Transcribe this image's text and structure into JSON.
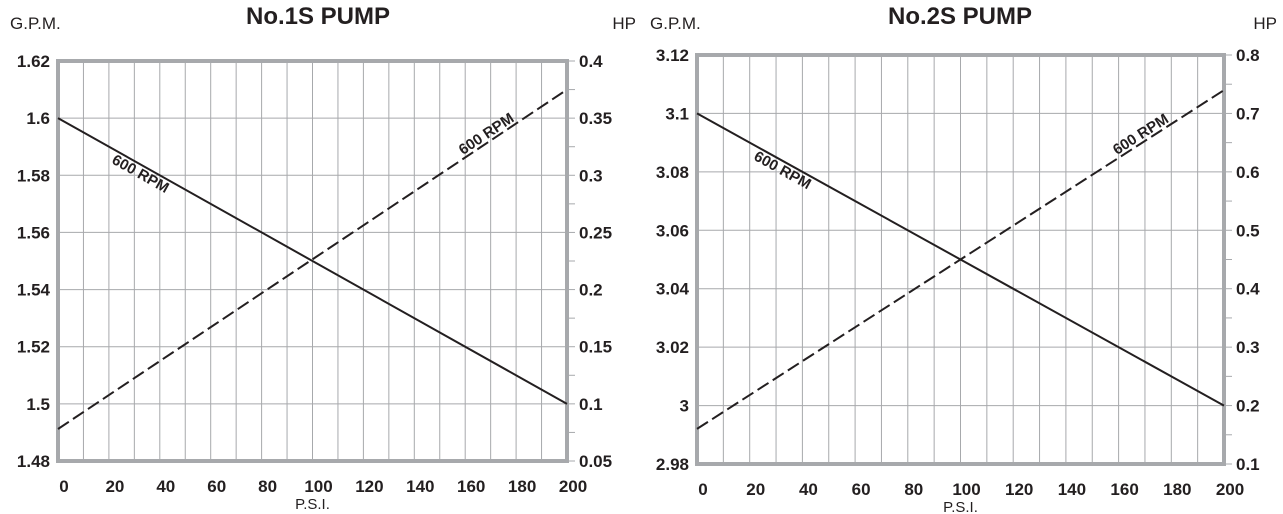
{
  "chart_data": [
    {
      "type": "line",
      "title": "No.1S PUMP",
      "ylabel_left": "G.P.M.",
      "ylabel_right": "HP",
      "xlabel": "P.S.I.",
      "x_ticks": [
        "0",
        "20",
        "40",
        "60",
        "80",
        "100",
        "120",
        "140",
        "160",
        "180",
        "200"
      ],
      "y_left_ticks": [
        "1.48",
        "1.5",
        "1.52",
        "1.54",
        "1.56",
        "1.58",
        "1.6",
        "1.62"
      ],
      "y_right_ticks": [
        "0.05",
        "0.1",
        "0.15",
        "0.2",
        "0.25",
        "0.3",
        "0.35",
        "0.4"
      ],
      "xlim": [
        0,
        200
      ],
      "ylim_left": [
        1.48,
        1.62
      ],
      "ylim_right": [
        0.05,
        0.4
      ],
      "grid": true,
      "series": [
        {
          "label": "600 RPM",
          "axis": "left",
          "style": "solid",
          "x": [
            0,
            200
          ],
          "y": [
            1.6,
            1.5
          ]
        },
        {
          "label": "600 RPM",
          "axis": "right",
          "style": "dashed",
          "x": [
            0,
            200
          ],
          "y": [
            0.078,
            0.375
          ]
        }
      ]
    },
    {
      "type": "line",
      "title": "No.2S PUMP",
      "ylabel_left": "G.P.M.",
      "ylabel_right": "HP",
      "xlabel": "P.S.I.",
      "x_ticks": [
        "0",
        "20",
        "40",
        "60",
        "80",
        "100",
        "120",
        "140",
        "160",
        "180",
        "200"
      ],
      "y_left_ticks": [
        "2.98",
        "3",
        "3.02",
        "3.04",
        "3.06",
        "3.08",
        "3.1",
        "3.12"
      ],
      "y_right_ticks": [
        "0.1",
        "0.2",
        "0.3",
        "0.4",
        "0.5",
        "0.6",
        "0.7",
        "0.8"
      ],
      "xlim": [
        0,
        200
      ],
      "ylim_left": [
        2.98,
        3.12
      ],
      "ylim_right": [
        0.1,
        0.8
      ],
      "grid": true,
      "series": [
        {
          "label": "600 RPM",
          "axis": "left",
          "style": "solid",
          "x": [
            0,
            200
          ],
          "y": [
            3.1,
            3.0
          ]
        },
        {
          "label": "600 RPM",
          "axis": "right",
          "style": "dashed",
          "x": [
            0,
            200
          ],
          "y": [
            0.16,
            0.74
          ]
        }
      ]
    }
  ]
}
